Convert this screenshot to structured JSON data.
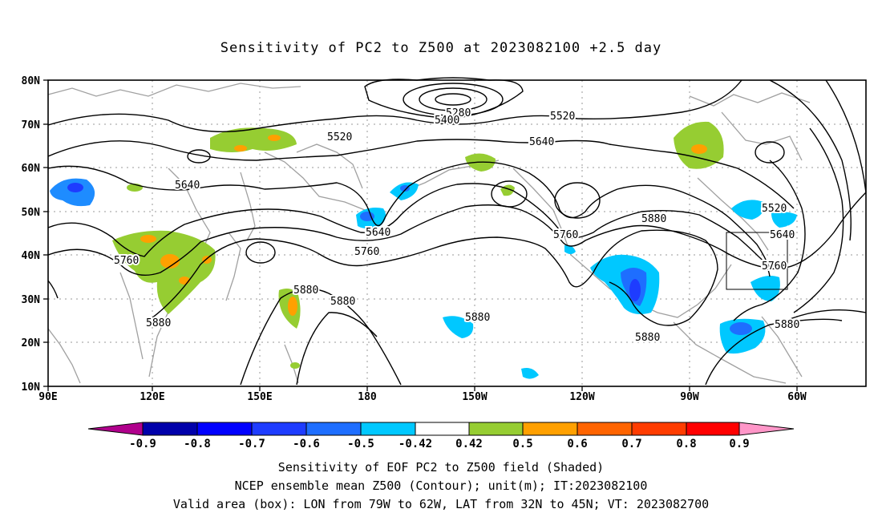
{
  "title": "Sensitivity of PC2 to Z500 at 2023082100 +2.5 day",
  "lat_labels": [
    "80N",
    "70N",
    "60N",
    "50N",
    "40N",
    "30N",
    "20N",
    "10N"
  ],
  "lon_labels": [
    "90E",
    "120E",
    "150E",
    "180",
    "150W",
    "120W",
    "90W",
    "60W"
  ],
  "contour_labels": [
    {
      "text": "5280"
    },
    {
      "text": "5400"
    },
    {
      "text": "5520"
    },
    {
      "text": "5520"
    },
    {
      "text": "5640"
    },
    {
      "text": "5640"
    },
    {
      "text": "5640"
    },
    {
      "text": "5760"
    },
    {
      "text": "5760"
    },
    {
      "text": "5760"
    },
    {
      "text": "5880"
    },
    {
      "text": "5880"
    },
    {
      "text": "5880"
    },
    {
      "text": "5880"
    },
    {
      "text": "5880"
    },
    {
      "text": "5880"
    },
    {
      "text": "5520"
    },
    {
      "text": "5640"
    },
    {
      "text": "5760"
    },
    {
      "text": "5880"
    }
  ],
  "colorbar": {
    "labels": [
      "-0.9",
      "-0.8",
      "-0.7",
      "-0.6",
      "-0.5",
      "-0.42",
      "0.42",
      "0.5",
      "0.6",
      "0.7",
      "0.8",
      "0.9"
    ],
    "colors": [
      "#b0008c",
      "#0000aa",
      "#0000ff",
      "#1e3cff",
      "#1e6eff",
      "#00a0ff",
      "#00c8ff",
      "#ffffff",
      "#96cd32",
      "#ffa000",
      "#ff6400",
      "#ff3c00",
      "#ff0000",
      "#ff96c8"
    ]
  },
  "footer": {
    "line1": "Sensitivity of EOF PC2 to Z500 field (Shaded)",
    "line2": "NCEP ensemble mean Z500 (Contour); unit(m); IT:2023082100",
    "line3": "Valid area (box): LON from 79W to 62W, LAT from 32N to 45N; VT: 2023082700"
  }
}
